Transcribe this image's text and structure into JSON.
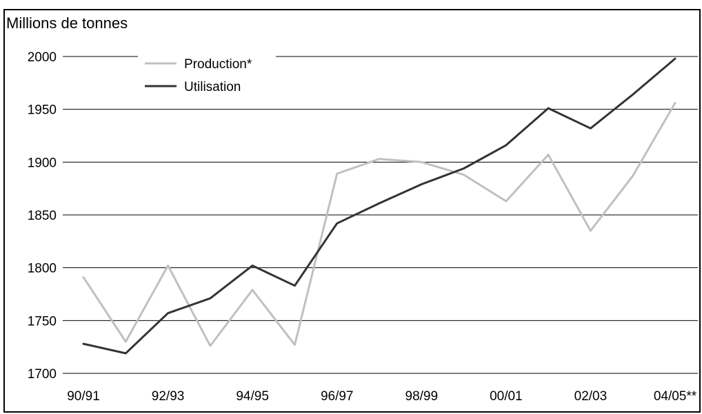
{
  "chart_data": {
    "type": "line",
    "title": "",
    "xlabel": "",
    "ylabel": "Millions de tonnes",
    "ylim": [
      1700,
      2000
    ],
    "yticks": [
      1700,
      1750,
      1800,
      1850,
      1900,
      1950,
      2000
    ],
    "x": [
      "90/91",
      "91/92",
      "92/93",
      "93/94",
      "94/95",
      "95/96",
      "96/97",
      "97/98",
      "98/99",
      "99/00",
      "00/01",
      "01/02",
      "02/03",
      "03/04",
      "04/05**"
    ],
    "x_tick_labels": [
      "90/91",
      "92/93",
      "94/95",
      "96/97",
      "98/99",
      "00/01",
      "02/03",
      "04/05**"
    ],
    "grid": "horizontal",
    "legend_position": "top-left",
    "series": [
      {
        "name": "Production*",
        "color": "#c0c0c0",
        "values": [
          1791,
          1730,
          1802,
          1726,
          1779,
          1727,
          1889,
          1903,
          1900,
          1888,
          1863,
          1907,
          1835,
          1887,
          1956
        ]
      },
      {
        "name": "Utilisation",
        "color": "#333333",
        "values": [
          1728,
          1719,
          1757,
          1771,
          1802,
          1783,
          1842,
          1861,
          1879,
          1894,
          1916,
          1951,
          1932,
          1964,
          1998
        ]
      }
    ]
  }
}
